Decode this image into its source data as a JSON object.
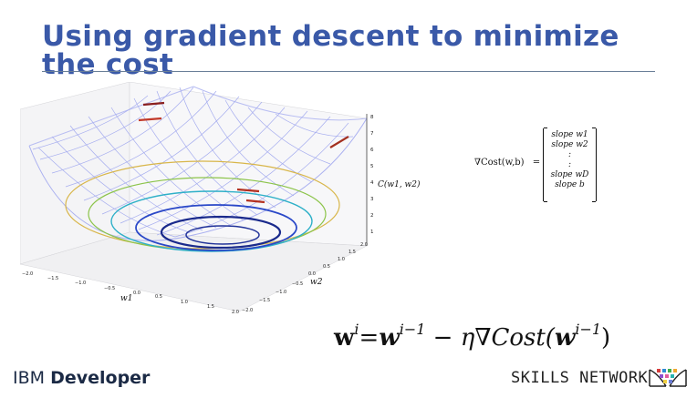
{
  "slide": {
    "title": "Using gradient descent to minimize the cost"
  },
  "surface_plot": {
    "z_label": "C(w1, w2)",
    "x_label": "w1",
    "y_label": "w2",
    "x_ticks": [
      "−2.0",
      "−1.5",
      "−1.0",
      "−0.5",
      "0.0",
      "0.5",
      "1.0",
      "1.5",
      "2.0"
    ],
    "y_ticks": [
      "−2.0",
      "−1.5",
      "−1.0",
      "−0.5",
      "0.0",
      "0.5",
      "1.0",
      "1.5",
      "2.0"
    ],
    "z_ticks": [
      "1",
      "2",
      "3",
      "4",
      "5",
      "6",
      "7",
      "8"
    ]
  },
  "gradient": {
    "lhs": "∇Cost(w,b)",
    "equals": "=",
    "rows": [
      "slope w1",
      "slope w2",
      ":",
      ":",
      "slope wD",
      "slope b"
    ]
  },
  "update_rule": {
    "w": "w",
    "sup_i": "i",
    "eq": "=",
    "w2": "w",
    "sup_im1": "i−1",
    "minus": " − ",
    "eta": "η",
    "nabla_cost": "∇Cost(",
    "w3": "w",
    "sup_im1_b": "i−1",
    "close": ")"
  },
  "footer": {
    "ibm": "IBM",
    "developer": "Developer",
    "skills_network": "SKILLS NETWORK"
  },
  "colors": {
    "title": "#3a59a8",
    "mesh_outer": "#9fa6ee",
    "mesh_inner": "#2233a8",
    "contour_dark": "#1a2a8c"
  }
}
